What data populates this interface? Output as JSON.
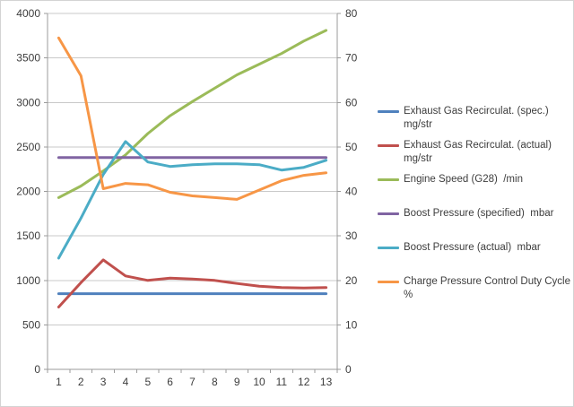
{
  "window": {
    "background": "#ffffff",
    "border_color": "#d4d4d4"
  },
  "colors": {
    "gridline": "#c9c9c9",
    "axis_line": "#9b9b9b",
    "tick_text": "#3d3d3d",
    "legend_text": "#3d3d3d"
  },
  "chart_data": {
    "type": "line",
    "title": "",
    "xlabel": "",
    "ylabel_left": "",
    "ylabel_right": "",
    "grid": true,
    "legend_position": "right",
    "x": [
      1,
      2,
      3,
      4,
      5,
      6,
      7,
      8,
      9,
      10,
      11,
      12,
      13
    ],
    "x_tick_labels": [
      "1",
      "2",
      "3",
      "4",
      "5",
      "6",
      "7",
      "8",
      "9",
      "10",
      "11",
      "12",
      "13"
    ],
    "axis_left": {
      "min": 0,
      "max": 4000,
      "step": 500,
      "tick_labels": [
        "4000",
        "3500",
        "3000",
        "2500",
        "2000",
        "1500",
        "1000",
        "500",
        "0"
      ]
    },
    "axis_right": {
      "min": 0,
      "max": 80,
      "step": 10,
      "tick_labels": [
        "80",
        "70",
        "60",
        "50",
        "40",
        "30",
        "20",
        "10",
        "0"
      ]
    },
    "series": [
      {
        "id": "egr-specified",
        "name": "Exhaust Gas Recirculat. (spec.)",
        "unit": "mg/str",
        "legend_lines": [
          "Exhaust Gas Recirculat. (spec.)",
          "mg/str"
        ],
        "axis": "right",
        "color": "#4F81BD",
        "values": [
          17,
          17,
          17,
          17,
          17,
          17,
          17,
          17,
          17,
          17,
          17,
          17,
          17
        ]
      },
      {
        "id": "egr-actual",
        "name": "Exhaust Gas Recirculat. (actual)",
        "unit": "mg/str",
        "legend_lines": [
          "Exhaust Gas Recirculat. (actual)",
          "mg/str"
        ],
        "axis": "right",
        "color": "#C0504D",
        "values": [
          14,
          19.5,
          24.6,
          21,
          20,
          20.5,
          20.3,
          20,
          19.3,
          18.7,
          18.4,
          18.3,
          18.4
        ]
      },
      {
        "id": "engine-speed",
        "name": "Engine Speed (G28)",
        "unit": "/min",
        "legend_lines": [
          "Engine Speed (G28)  /min"
        ],
        "axis": "left",
        "color": "#9BBB59",
        "values": [
          1930,
          2060,
          2230,
          2410,
          2650,
          2850,
          3010,
          3160,
          3310,
          3430,
          3550,
          3690,
          3810
        ]
      },
      {
        "id": "boost-specified",
        "name": "Boost Pressure (specified)",
        "unit": "mbar",
        "legend_lines": [
          "Boost Pressure (specified)  mbar"
        ],
        "axis": "left",
        "color": "#8064A2",
        "values": [
          2380,
          2380,
          2380,
          2380,
          2380,
          2380,
          2380,
          2380,
          2380,
          2380,
          2380,
          2380,
          2380
        ]
      },
      {
        "id": "boost-actual",
        "name": "Boost Pressure (actual)",
        "unit": "mbar",
        "legend_lines": [
          "Boost Pressure (actual)  mbar"
        ],
        "axis": "left",
        "color": "#4BACC6",
        "values": [
          1250,
          1700,
          2190,
          2560,
          2330,
          2280,
          2300,
          2310,
          2310,
          2300,
          2240,
          2270,
          2350
        ]
      },
      {
        "id": "charge-duty-cycle",
        "name": "Charge Pressure Control Duty Cycle",
        "unit": "%",
        "legend_lines": [
          "Charge Pressure Control Duty Cycle",
          "%"
        ],
        "axis": "right",
        "color": "#F79646",
        "values": [
          74.5,
          66,
          40.6,
          41.8,
          41.5,
          39.8,
          39,
          38.6,
          38.2,
          40.3,
          42.4,
          43.6,
          44.2
        ]
      }
    ]
  }
}
